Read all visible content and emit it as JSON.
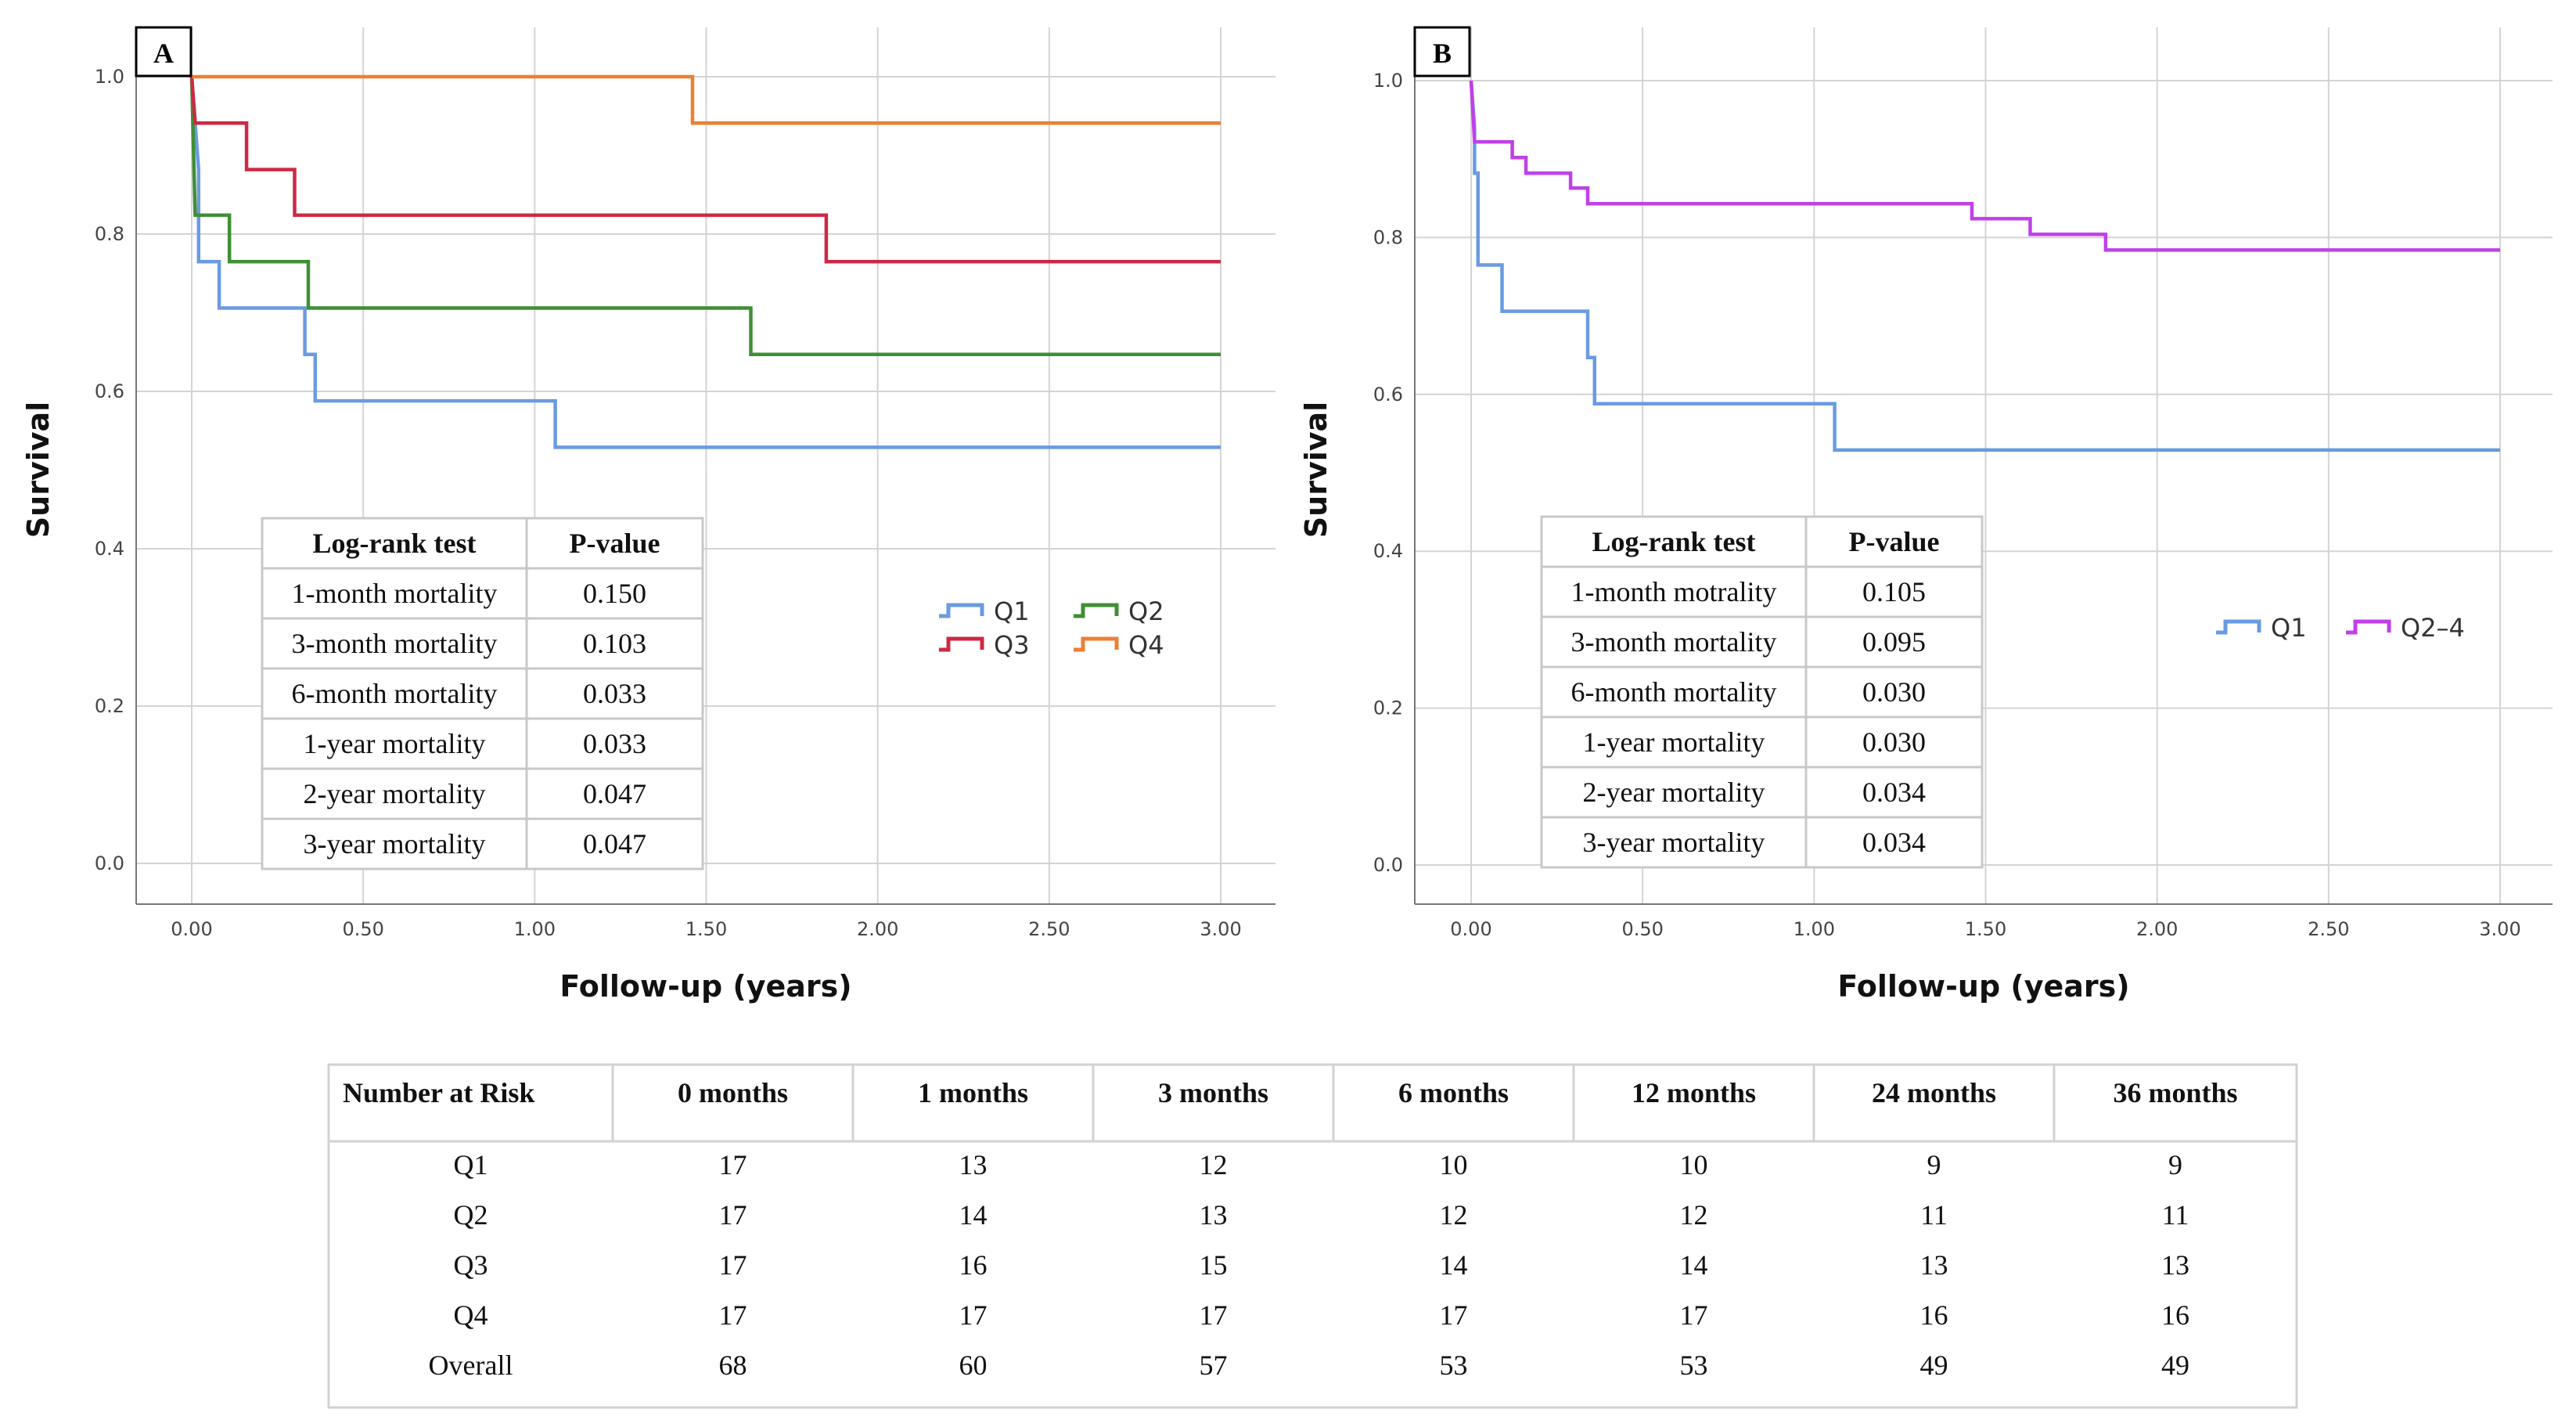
{
  "chart_data": [
    {
      "type": "line",
      "panel_label": "A",
      "xlabel": "Follow-up (years)",
      "ylabel": "Survival",
      "xlim": [
        0,
        3
      ],
      "ylim": [
        0,
        1
      ],
      "xticks": [
        "0.00",
        "0.50",
        "1.00",
        "1.50",
        "2.00",
        "2.50",
        "3.00"
      ],
      "yticks": [
        "0.0",
        "0.2",
        "0.4",
        "0.6",
        "0.8",
        "1.0"
      ],
      "grid": true,
      "legend_position": "right",
      "step": true,
      "series": [
        {
          "name": "Q1",
          "color": "#6a9be0",
          "points": [
            [
              0,
              1.0
            ],
            [
              0.02,
              0.882
            ],
            [
              0.02,
              0.765
            ],
            [
              0.08,
              0.765
            ],
            [
              0.08,
              0.706
            ],
            [
              0.33,
              0.706
            ],
            [
              0.33,
              0.647
            ],
            [
              0.36,
              0.647
            ],
            [
              0.36,
              0.588
            ],
            [
              1.06,
              0.588
            ],
            [
              1.06,
              0.529
            ],
            [
              3.0,
              0.529
            ]
          ]
        },
        {
          "name": "Q2",
          "color": "#3f8f35",
          "points": [
            [
              0,
              1.0
            ],
            [
              0.01,
              0.824
            ],
            [
              0.11,
              0.824
            ],
            [
              0.11,
              0.765
            ],
            [
              0.34,
              0.765
            ],
            [
              0.34,
              0.706
            ],
            [
              1.63,
              0.706
            ],
            [
              1.63,
              0.647
            ],
            [
              3.0,
              0.647
            ]
          ]
        },
        {
          "name": "Q3",
          "color": "#cc2a44",
          "points": [
            [
              0,
              1.0
            ],
            [
              0.01,
              0.941
            ],
            [
              0.16,
              0.941
            ],
            [
              0.16,
              0.882
            ],
            [
              0.3,
              0.882
            ],
            [
              0.3,
              0.824
            ],
            [
              1.85,
              0.824
            ],
            [
              1.85,
              0.765
            ],
            [
              3.0,
              0.765
            ]
          ]
        },
        {
          "name": "Q4",
          "color": "#eb8035",
          "points": [
            [
              0,
              1.0
            ],
            [
              1.46,
              1.0
            ],
            [
              1.46,
              0.941
            ],
            [
              3.0,
              0.941
            ]
          ]
        }
      ],
      "inset_table": {
        "headers": [
          "Log-rank test",
          "P-value"
        ],
        "rows": [
          [
            "1-month mortality",
            "0.150"
          ],
          [
            "3-month mortality",
            "0.103"
          ],
          [
            "6-month mortality",
            "0.033"
          ],
          [
            "1-year mortality",
            "0.033"
          ],
          [
            "2-year mortality",
            "0.047"
          ],
          [
            "3-year mortality",
            "0.047"
          ]
        ]
      }
    },
    {
      "type": "line",
      "panel_label": "B",
      "xlabel": "Follow-up (years)",
      "ylabel": "Survival",
      "xlim": [
        0,
        3
      ],
      "ylim": [
        0,
        1
      ],
      "xticks": [
        "0.00",
        "0.50",
        "1.00",
        "1.50",
        "2.00",
        "2.50",
        "3.00"
      ],
      "yticks": [
        "0.0",
        "0.2",
        "0.4",
        "0.6",
        "0.8",
        "1.0"
      ],
      "grid": true,
      "legend_position": "right",
      "step": true,
      "series": [
        {
          "name": "Q1",
          "color": "#6a9be0",
          "points": [
            [
              0,
              1.0
            ],
            [
              0.01,
              0.941
            ],
            [
              0.01,
              0.882
            ],
            [
              0.02,
              0.882
            ],
            [
              0.02,
              0.765
            ],
            [
              0.09,
              0.765
            ],
            [
              0.09,
              0.706
            ],
            [
              0.34,
              0.706
            ],
            [
              0.34,
              0.647
            ],
            [
              0.36,
              0.647
            ],
            [
              0.36,
              0.588
            ],
            [
              1.06,
              0.588
            ],
            [
              1.06,
              0.529
            ],
            [
              3.0,
              0.529
            ]
          ]
        },
        {
          "name": "Q2–4",
          "color": "#c040e8",
          "points": [
            [
              0,
              1.0
            ],
            [
              0.01,
              0.922
            ],
            [
              0.12,
              0.922
            ],
            [
              0.12,
              0.902
            ],
            [
              0.16,
              0.902
            ],
            [
              0.16,
              0.882
            ],
            [
              0.29,
              0.882
            ],
            [
              0.29,
              0.863
            ],
            [
              0.34,
              0.863
            ],
            [
              0.34,
              0.843
            ],
            [
              1.46,
              0.843
            ],
            [
              1.46,
              0.824
            ],
            [
              1.63,
              0.824
            ],
            [
              1.63,
              0.804
            ],
            [
              1.85,
              0.804
            ],
            [
              1.85,
              0.784
            ],
            [
              3.0,
              0.784
            ]
          ]
        }
      ],
      "inset_table": {
        "headers": [
          "Log-rank test",
          "P-value"
        ],
        "rows": [
          [
            "1-month motrality",
            "0.105"
          ],
          [
            "3-month mortality",
            "0.095"
          ],
          [
            "6-month mortality",
            "0.030"
          ],
          [
            "1-year mortality",
            "0.030"
          ],
          [
            "2-year mortality",
            "0.034"
          ],
          [
            "3-year mortality",
            "0.034"
          ]
        ]
      }
    }
  ],
  "risk_table": {
    "headers": [
      "Number at Risk",
      "0 months",
      "1 months",
      "3 months",
      "6 months",
      "12 months",
      "24 months",
      "36 months"
    ],
    "rows": [
      [
        "Q1",
        "17",
        "13",
        "12",
        "10",
        "10",
        "9",
        "9"
      ],
      [
        "Q2",
        "17",
        "14",
        "13",
        "12",
        "12",
        "11",
        "11"
      ],
      [
        "Q3",
        "17",
        "16",
        "15",
        "14",
        "14",
        "13",
        "13"
      ],
      [
        "Q4",
        "17",
        "17",
        "17",
        "17",
        "17",
        "16",
        "16"
      ],
      [
        "Overall",
        "68",
        "60",
        "57",
        "53",
        "53",
        "49",
        "49"
      ]
    ]
  }
}
